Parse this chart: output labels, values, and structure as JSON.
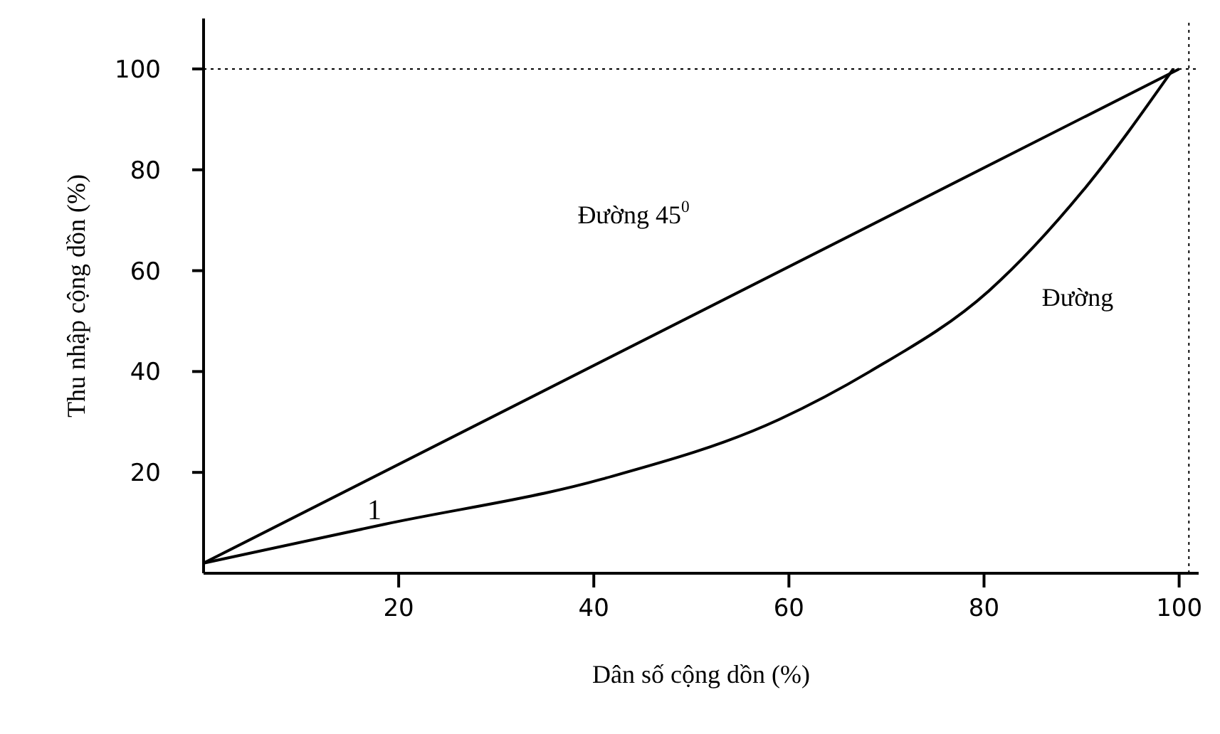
{
  "chart_data": {
    "type": "line",
    "xlabel": "Dân số cộng dồn (%)",
    "ylabel": "Thu nhập cộng dồn (%)",
    "series": [
      {
        "color": "#000000",
        "x": [
          0,
          100
        ],
        "values": [
          2,
          100
        ]
      },
      {
        "color": "#000000",
        "x": [
          0,
          18.5,
          40.9,
          59,
          68.3,
          80.5,
          90.2,
          99.4
        ],
        "values": [
          2,
          9.7,
          18.7,
          30.5,
          40,
          56,
          76,
          100
        ]
      }
    ],
    "xlim": [
      0,
      102
    ],
    "xticks": [
      20,
      40,
      60,
      80,
      100
    ],
    "ylim": [
      0,
      110
    ],
    "yticks": [
      20,
      40,
      60,
      80,
      100
    ],
    "grid": false,
    "marker": "none",
    "line_style": "solid",
    "ref_lines": [
      {
        "axis": "y",
        "value": 100,
        "line_style": "dotted"
      },
      {
        "axis": "x",
        "value": 101,
        "line_style": "dotted"
      }
    ],
    "annotations": [
      "Đường 45$^{0}$",
      "Đường",
      "1"
    ]
  }
}
